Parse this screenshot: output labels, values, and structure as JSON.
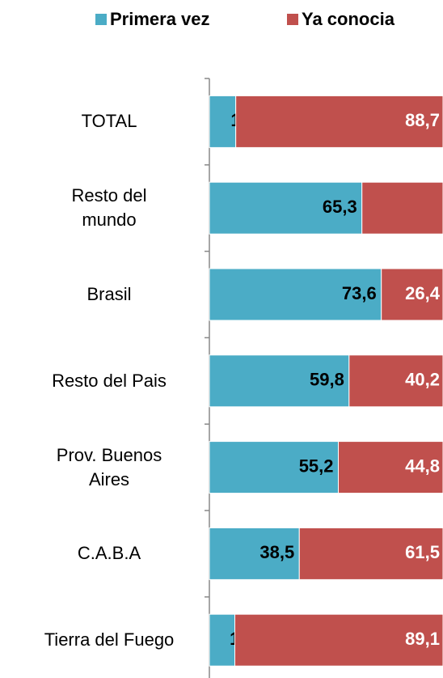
{
  "chart_data": {
    "type": "stacked-bar-horizontal",
    "categories": [
      "TOTAL",
      "Resto del\nmundo",
      "Brasil",
      "Resto del Pais",
      "Prov. Buenos\nAires",
      "C.A.B.A",
      "Tierra del Fuego"
    ],
    "series": [
      {
        "name": "Primera vez",
        "color": "#4bacc6",
        "values": [
          11.3,
          65.3,
          73.6,
          59.8,
          55.2,
          38.5,
          10.9
        ],
        "value_labels": [
          "11,3",
          "65,3",
          "73,6",
          "59,8",
          "55,2",
          "38,5",
          "10,9"
        ]
      },
      {
        "name": "Ya conocia",
        "color": "#c0504d",
        "values": [
          88.7,
          34.7,
          26.4,
          40.2,
          44.8,
          61.5,
          89.1
        ],
        "value_labels": [
          "88,7",
          null,
          "26,4",
          "40,2",
          "44,8",
          "61,5",
          "89,1"
        ]
      }
    ],
    "xlim": [
      0,
      100
    ]
  }
}
